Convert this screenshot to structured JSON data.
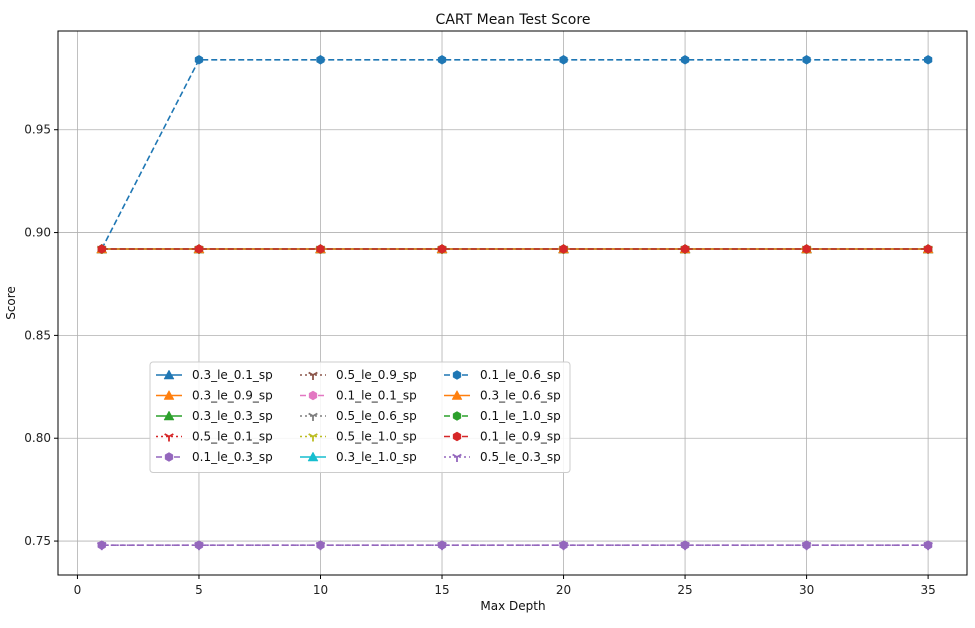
{
  "chart_data": {
    "type": "line",
    "title": "CART Mean Test Score",
    "xlabel": "Max Depth",
    "ylabel": "Score",
    "xlim": [
      -0.8,
      36.6
    ],
    "ylim": [
      0.7335,
      0.998
    ],
    "xticks": [
      0,
      5,
      10,
      15,
      20,
      25,
      30,
      35
    ],
    "xtick_labels": [
      "0",
      "5",
      "10",
      "15",
      "20",
      "25",
      "30",
      "35"
    ],
    "yticks": [
      0.75,
      0.8,
      0.85,
      0.9,
      0.95
    ],
    "ytick_labels": [
      "0.75",
      "0.80",
      "0.85",
      "0.90",
      "0.95"
    ],
    "grid": true,
    "legend_placement": "lower-left",
    "legend_columns": 3,
    "x": [
      1,
      5,
      10,
      15,
      20,
      25,
      30,
      35
    ],
    "series": [
      {
        "name": "0.3_le_0.1_sp",
        "values": [
          0.892,
          0.892,
          0.892,
          0.892,
          0.892,
          0.892,
          0.892,
          0.892
        ],
        "color": "#1f77b4",
        "linestyle": "solid",
        "marker": "triangle-up"
      },
      {
        "name": "0.3_le_0.9_sp",
        "values": [
          0.892,
          0.892,
          0.892,
          0.892,
          0.892,
          0.892,
          0.892,
          0.892
        ],
        "color": "#ff7f0e",
        "linestyle": "solid",
        "marker": "triangle-up"
      },
      {
        "name": "0.3_le_0.3_sp",
        "values": [
          0.892,
          0.892,
          0.892,
          0.892,
          0.892,
          0.892,
          0.892,
          0.892
        ],
        "color": "#2ca02c",
        "linestyle": "solid",
        "marker": "triangle-up"
      },
      {
        "name": "0.5_le_0.1_sp",
        "values": [
          0.892,
          0.892,
          0.892,
          0.892,
          0.892,
          0.892,
          0.892,
          0.892
        ],
        "color": "#d62728",
        "linestyle": "dotted",
        "marker": "tri-down"
      },
      {
        "name": "0.1_le_0.3_sp",
        "values": [
          0.748,
          0.748,
          0.748,
          0.748,
          0.748,
          0.748,
          0.748,
          0.748
        ],
        "color": "#9467bd",
        "linestyle": "dashed",
        "marker": "hexagon"
      },
      {
        "name": "0.5_le_0.9_sp",
        "values": [
          0.892,
          0.892,
          0.892,
          0.892,
          0.892,
          0.892,
          0.892,
          0.892
        ],
        "color": "#8c564b",
        "linestyle": "dotted",
        "marker": "tri-down"
      },
      {
        "name": "0.1_le_0.1_sp",
        "values": [
          0.892,
          0.892,
          0.892,
          0.892,
          0.892,
          0.892,
          0.892,
          0.892
        ],
        "color": "#e377c2",
        "linestyle": "dashed",
        "marker": "hexagon"
      },
      {
        "name": "0.5_le_0.6_sp",
        "values": [
          0.892,
          0.892,
          0.892,
          0.892,
          0.892,
          0.892,
          0.892,
          0.892
        ],
        "color": "#7f7f7f",
        "linestyle": "dotted",
        "marker": "tri-down"
      },
      {
        "name": "0.5_le_1.0_sp",
        "values": [
          0.892,
          0.892,
          0.892,
          0.892,
          0.892,
          0.892,
          0.892,
          0.892
        ],
        "color": "#bcbd22",
        "linestyle": "dotted",
        "marker": "tri-down"
      },
      {
        "name": "0.3_le_1.0_sp",
        "values": [
          0.892,
          0.892,
          0.892,
          0.892,
          0.892,
          0.892,
          0.892,
          0.892
        ],
        "color": "#17becf",
        "linestyle": "solid",
        "marker": "triangle-up"
      },
      {
        "name": "0.1_le_0.6_sp",
        "values": [
          0.892,
          0.984,
          0.984,
          0.984,
          0.984,
          0.984,
          0.984,
          0.984
        ],
        "color": "#1f77b4",
        "linestyle": "dashed",
        "marker": "hexagon"
      },
      {
        "name": "0.3_le_0.6_sp",
        "values": [
          0.892,
          0.892,
          0.892,
          0.892,
          0.892,
          0.892,
          0.892,
          0.892
        ],
        "color": "#ff7f0e",
        "linestyle": "solid",
        "marker": "triangle-up"
      },
      {
        "name": "0.1_le_1.0_sp",
        "values": [
          0.892,
          0.892,
          0.892,
          0.892,
          0.892,
          0.892,
          0.892,
          0.892
        ],
        "color": "#2ca02c",
        "linestyle": "dashed",
        "marker": "hexagon"
      },
      {
        "name": "0.1_le_0.9_sp",
        "values": [
          0.892,
          0.892,
          0.892,
          0.892,
          0.892,
          0.892,
          0.892,
          0.892
        ],
        "color": "#d62728",
        "linestyle": "dashed",
        "marker": "hexagon"
      },
      {
        "name": "0.5_le_0.3_sp",
        "values": [
          0.748,
          0.748,
          0.748,
          0.748,
          0.748,
          0.748,
          0.748,
          0.748
        ],
        "color": "#9467bd",
        "linestyle": "dotted",
        "marker": "tri-down"
      }
    ]
  }
}
